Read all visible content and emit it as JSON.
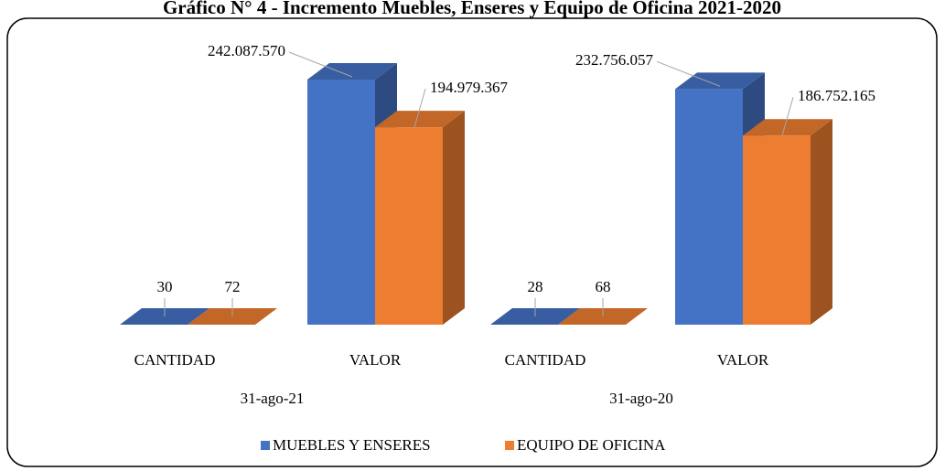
{
  "chart_data": {
    "type": "bar3d",
    "title": "Gráfico N° 4 - Incremento Muebles, Enseres y Equipo de Oficina 2021-2020",
    "categories": [
      "CANTIDAD",
      "VALOR",
      "CANTIDAD",
      "VALOR"
    ],
    "groups": [
      "31-ago-21",
      "31-ago-20"
    ],
    "series": [
      {
        "name": "MUEBLES Y ENSERES",
        "color": "#4472c4",
        "values": [
          30,
          242087570,
          28,
          232756057
        ],
        "value_labels": [
          "30",
          "242.087.570",
          "28",
          "232.756.057"
        ]
      },
      {
        "name": "EQUIPO DE OFICINA",
        "color": "#ed7d31",
        "values": [
          72,
          194979367,
          68,
          186752165
        ],
        "value_labels": [
          "72",
          "194.979.367",
          "68",
          "186.752.165"
        ]
      }
    ]
  }
}
